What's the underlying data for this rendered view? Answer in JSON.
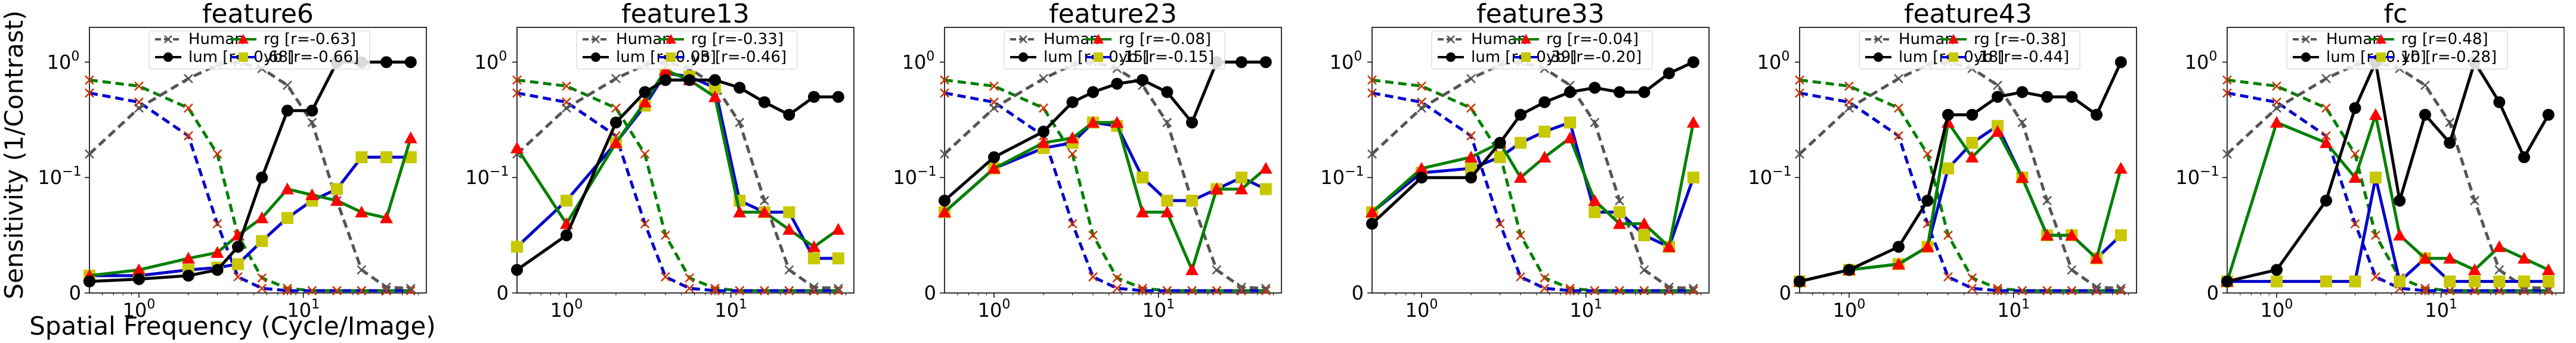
{
  "figure": {
    "ylabel": "Sensitivity (1/Contrast)",
    "xlabel": "Spatial Frequency (Cycle/Image)"
  },
  "legend_labels": {
    "human": "Human",
    "lum": "lum",
    "rg": "rg",
    "yb": "yb"
  },
  "colors": {
    "human": "#555555",
    "lum": "#000000",
    "rg": "#008000",
    "yb": "#0000cc",
    "rg_marker": "#ff0000",
    "yb_marker": "#c8c800"
  },
  "chart_data": [
    {
      "type": "line",
      "title": "feature6",
      "x_scale": "log",
      "y_scale": "symlog",
      "xlim": [
        0.5,
        56
      ],
      "ylim": [
        0,
        2
      ],
      "xticks": [
        "10^0",
        "10^1"
      ],
      "yticks": [
        "0",
        "10^-1",
        "10^0"
      ],
      "legend_position": "top",
      "r_values": {
        "lum": "[r=-0.68]",
        "rg": "[r=-0.63]",
        "yb": "[r=-0.66]"
      },
      "x": [
        0.5,
        1,
        2,
        3,
        4,
        5.6,
        8,
        11.3,
        16,
        22.6,
        32,
        45
      ],
      "series": [
        {
          "name": "Human",
          "values": [
            0.16,
            0.4,
            0.72,
            0.95,
            1.0,
            0.88,
            0.63,
            0.3,
            0.08,
            0.02,
            0.005,
            0.004
          ]
        },
        {
          "name": "lum",
          "values": [
            0.01,
            0.012,
            0.015,
            0.02,
            0.04,
            0.1,
            0.38,
            0.38,
            1.0,
            1.0,
            1.0,
            1.0
          ]
        },
        {
          "name": "rg",
          "values": [
            0.015,
            0.02,
            0.03,
            0.035,
            0.05,
            0.065,
            0.09,
            0.085,
            0.08,
            0.07,
            0.065,
            0.22
          ]
        },
        {
          "name": "yb",
          "values": [
            0.015,
            0.015,
            0.02,
            0.022,
            0.025,
            0.045,
            0.065,
            0.08,
            0.09,
            0.15,
            0.15,
            0.15
          ]
        },
        {
          "name": "rg_human",
          "values": [
            0.7,
            0.62,
            0.4,
            0.16,
            0.05,
            0.013,
            0.004,
            0.002,
            0.002,
            0.002,
            0.002,
            0.002
          ]
        },
        {
          "name": "yb_human",
          "values": [
            0.54,
            0.45,
            0.23,
            0.06,
            0.014,
            0.004,
            0.002,
            0.002,
            0.002,
            0.002,
            0.002,
            0.002
          ]
        }
      ]
    },
    {
      "type": "line",
      "title": "feature13",
      "x_scale": "log",
      "y_scale": "symlog",
      "xlim": [
        0.5,
        56
      ],
      "ylim": [
        0,
        2
      ],
      "xticks": [
        "10^0",
        "10^1"
      ],
      "yticks": [
        "0",
        "10^-1",
        "10^0"
      ],
      "legend_position": "top",
      "r_values": {
        "lum": "[r=0.03]",
        "rg": "[r=-0.33]",
        "yb": "[r=-0.46]"
      },
      "x": [
        0.5,
        1,
        2,
        3,
        4,
        5.6,
        8,
        11.3,
        16,
        22.6,
        32,
        45
      ],
      "series": [
        {
          "name": "Human",
          "values": [
            0.16,
            0.4,
            0.72,
            0.95,
            1.0,
            0.88,
            0.63,
            0.3,
            0.08,
            0.02,
            0.005,
            0.004
          ]
        },
        {
          "name": "lum",
          "values": [
            0.02,
            0.05,
            0.3,
            0.55,
            0.7,
            0.7,
            0.7,
            0.6,
            0.45,
            0.35,
            0.5,
            0.5
          ]
        },
        {
          "name": "rg",
          "values": [
            0.18,
            0.06,
            0.2,
            0.45,
            0.85,
            0.7,
            0.5,
            0.07,
            0.07,
            0.055,
            0.04,
            0.055
          ]
        },
        {
          "name": "yb",
          "values": [
            0.04,
            0.08,
            0.2,
            0.42,
            0.8,
            0.75,
            0.6,
            0.08,
            0.07,
            0.07,
            0.03,
            0.03
          ]
        },
        {
          "name": "rg_human",
          "values": [
            0.7,
            0.62,
            0.4,
            0.16,
            0.05,
            0.013,
            0.004,
            0.002,
            0.002,
            0.002,
            0.002,
            0.002
          ]
        },
        {
          "name": "yb_human",
          "values": [
            0.54,
            0.45,
            0.23,
            0.06,
            0.014,
            0.004,
            0.002,
            0.002,
            0.002,
            0.002,
            0.002,
            0.002
          ]
        }
      ]
    },
    {
      "type": "line",
      "title": "feature23",
      "x_scale": "log",
      "y_scale": "symlog",
      "xlim": [
        0.5,
        56
      ],
      "ylim": [
        0,
        2
      ],
      "xticks": [
        "10^0",
        "10^1"
      ],
      "yticks": [
        "0",
        "10^-1",
        "10^0"
      ],
      "legend_position": "top",
      "r_values": {
        "lum": "[r=-0.15]",
        "rg": "[r=-0.08]",
        "yb": "[r=-0.15]"
      },
      "x": [
        0.5,
        1,
        2,
        3,
        4,
        5.6,
        8,
        11.3,
        16,
        22.6,
        32,
        45
      ],
      "series": [
        {
          "name": "Human",
          "values": [
            0.16,
            0.4,
            0.72,
            0.95,
            1.0,
            0.88,
            0.63,
            0.3,
            0.08,
            0.02,
            0.005,
            0.004
          ]
        },
        {
          "name": "lum",
          "values": [
            0.08,
            0.15,
            0.25,
            0.45,
            0.55,
            0.65,
            0.7,
            0.55,
            0.3,
            1.0,
            1.0,
            1.0
          ]
        },
        {
          "name": "rg",
          "values": [
            0.07,
            0.12,
            0.2,
            0.22,
            0.3,
            0.3,
            0.07,
            0.07,
            0.02,
            0.09,
            0.09,
            0.12
          ]
        },
        {
          "name": "yb",
          "values": [
            0.07,
            0.12,
            0.18,
            0.2,
            0.3,
            0.28,
            0.1,
            0.08,
            0.08,
            0.09,
            0.1,
            0.09
          ]
        },
        {
          "name": "rg_human",
          "values": [
            0.7,
            0.62,
            0.4,
            0.16,
            0.05,
            0.013,
            0.004,
            0.002,
            0.002,
            0.002,
            0.002,
            0.002
          ]
        },
        {
          "name": "yb_human",
          "values": [
            0.54,
            0.45,
            0.23,
            0.06,
            0.014,
            0.004,
            0.002,
            0.002,
            0.002,
            0.002,
            0.002,
            0.002
          ]
        }
      ]
    },
    {
      "type": "line",
      "title": "feature33",
      "x_scale": "log",
      "y_scale": "symlog",
      "xlim": [
        0.5,
        56
      ],
      "ylim": [
        0,
        2
      ],
      "xticks": [
        "10^0",
        "10^1"
      ],
      "yticks": [
        "0",
        "10^-1",
        "10^0"
      ],
      "legend_position": "top",
      "r_values": {
        "lum": "[r=-0.39]",
        "rg": "[r=-0.04]",
        "yb": "[r=-0.20]"
      },
      "x": [
        0.5,
        1,
        2,
        3,
        4,
        5.6,
        8,
        11.3,
        16,
        22.6,
        32,
        45
      ],
      "series": [
        {
          "name": "Human",
          "values": [
            0.16,
            0.4,
            0.72,
            0.95,
            1.0,
            0.88,
            0.63,
            0.3,
            0.08,
            0.02,
            0.005,
            0.004
          ]
        },
        {
          "name": "lum",
          "values": [
            0.06,
            0.1,
            0.1,
            0.2,
            0.35,
            0.45,
            0.55,
            0.6,
            0.55,
            0.55,
            0.8,
            1.0
          ]
        },
        {
          "name": "rg",
          "values": [
            0.07,
            0.12,
            0.15,
            0.2,
            0.1,
            0.15,
            0.22,
            0.08,
            0.06,
            0.06,
            0.04,
            0.3
          ]
        },
        {
          "name": "yb",
          "values": [
            0.07,
            0.11,
            0.12,
            0.15,
            0.2,
            0.25,
            0.3,
            0.07,
            0.07,
            0.05,
            0.04,
            0.1
          ]
        },
        {
          "name": "rg_human",
          "values": [
            0.7,
            0.62,
            0.4,
            0.16,
            0.05,
            0.013,
            0.004,
            0.002,
            0.002,
            0.002,
            0.002,
            0.002
          ]
        },
        {
          "name": "yb_human",
          "values": [
            0.54,
            0.45,
            0.23,
            0.06,
            0.014,
            0.004,
            0.002,
            0.002,
            0.002,
            0.002,
            0.002,
            0.002
          ]
        }
      ]
    },
    {
      "type": "line",
      "title": "feature43",
      "x_scale": "log",
      "y_scale": "symlog",
      "xlim": [
        0.5,
        56
      ],
      "ylim": [
        0,
        2
      ],
      "xticks": [
        "10^0",
        "10^1"
      ],
      "yticks": [
        "0",
        "10^-1",
        "10^0"
      ],
      "legend_position": "top",
      "r_values": {
        "lum": "[r=-0.18]",
        "rg": "[r=-0.38]",
        "yb": "[r=-0.44]"
      },
      "x": [
        0.5,
        1,
        2,
        3,
        4,
        5.6,
        8,
        11.3,
        16,
        22.6,
        32,
        45
      ],
      "series": [
        {
          "name": "Human",
          "values": [
            0.16,
            0.4,
            0.72,
            0.95,
            1.0,
            0.88,
            0.63,
            0.3,
            0.08,
            0.02,
            0.005,
            0.004
          ]
        },
        {
          "name": "lum",
          "values": [
            0.01,
            0.02,
            0.04,
            0.08,
            0.35,
            0.35,
            0.5,
            0.55,
            0.5,
            0.5,
            0.35,
            1.0
          ]
        },
        {
          "name": "rg",
          "values": [
            0.01,
            0.02,
            0.025,
            0.04,
            0.3,
            0.15,
            0.25,
            0.1,
            0.05,
            0.05,
            0.03,
            0.12
          ]
        },
        {
          "name": "yb",
          "values": [
            0.01,
            0.02,
            0.025,
            0.04,
            0.12,
            0.2,
            0.28,
            0.1,
            0.05,
            0.05,
            0.03,
            0.05
          ]
        },
        {
          "name": "rg_human",
          "values": [
            0.7,
            0.62,
            0.4,
            0.16,
            0.05,
            0.013,
            0.004,
            0.002,
            0.002,
            0.002,
            0.002,
            0.002
          ]
        },
        {
          "name": "yb_human",
          "values": [
            0.54,
            0.45,
            0.23,
            0.06,
            0.014,
            0.004,
            0.002,
            0.002,
            0.002,
            0.002,
            0.002,
            0.002
          ]
        }
      ]
    },
    {
      "type": "line",
      "title": "fc",
      "x_scale": "log",
      "y_scale": "symlog",
      "xlim": [
        0.5,
        56
      ],
      "ylim": [
        0,
        2
      ],
      "xticks": [
        "10^0",
        "10^1"
      ],
      "yticks": [
        "0",
        "10^-1",
        "10^0"
      ],
      "legend_position": "top",
      "r_values": {
        "lum": "[r=0.10]",
        "rg": "[r=0.48]",
        "yb": "[r=-0.28]"
      },
      "x": [
        0.5,
        1,
        2,
        3,
        4,
        5.6,
        8,
        11.3,
        16,
        22.6,
        32,
        45
      ],
      "series": [
        {
          "name": "Human",
          "values": [
            0.16,
            0.4,
            0.72,
            0.95,
            1.0,
            0.88,
            0.63,
            0.3,
            0.08,
            0.02,
            0.005,
            0.004
          ]
        },
        {
          "name": "lum",
          "values": [
            0.01,
            0.02,
            0.08,
            0.4,
            1.0,
            0.08,
            0.35,
            0.2,
            1.0,
            0.45,
            0.15,
            0.35
          ]
        },
        {
          "name": "rg",
          "values": [
            0.01,
            0.3,
            0.2,
            0.1,
            0.35,
            0.05,
            0.03,
            0.03,
            0.02,
            0.04,
            0.03,
            0.02
          ]
        },
        {
          "name": "yb",
          "values": [
            0.01,
            0.01,
            0.01,
            0.01,
            0.1,
            0.01,
            0.03,
            0.01,
            0.01,
            0.01,
            0.01,
            0.01
          ]
        },
        {
          "name": "rg_human",
          "values": [
            0.7,
            0.62,
            0.4,
            0.16,
            0.05,
            0.013,
            0.004,
            0.002,
            0.002,
            0.002,
            0.002,
            0.002
          ]
        },
        {
          "name": "yb_human",
          "values": [
            0.54,
            0.45,
            0.23,
            0.06,
            0.014,
            0.004,
            0.002,
            0.002,
            0.002,
            0.002,
            0.002,
            0.002
          ]
        }
      ]
    }
  ]
}
